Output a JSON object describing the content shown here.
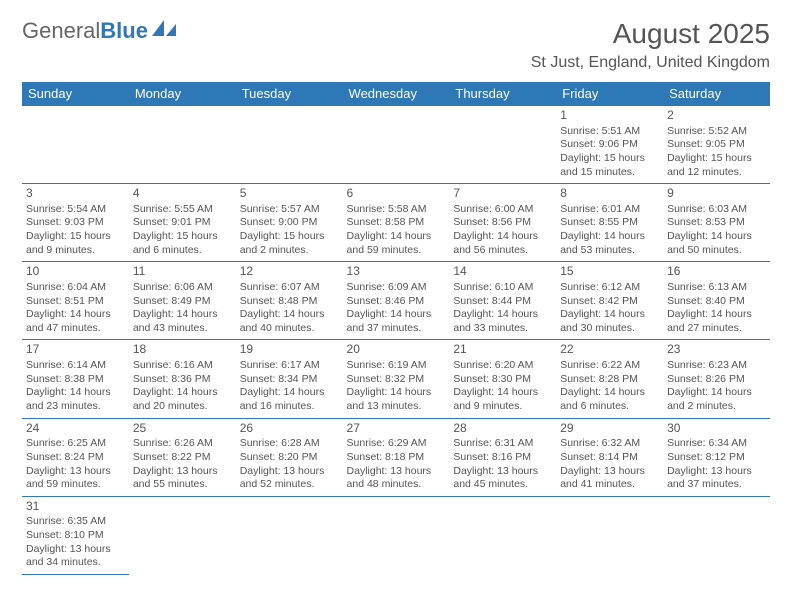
{
  "logo": {
    "text1": "General",
    "text2": "Blue"
  },
  "title": "August 2025",
  "location": "St Just, England, United Kingdom",
  "headers": [
    "Sunday",
    "Monday",
    "Tuesday",
    "Wednesday",
    "Thursday",
    "Friday",
    "Saturday"
  ],
  "header_bg": "#2f78b7",
  "header_fg": "#ffffff",
  "border_color": "#2f78b7",
  "text_color": "#555555",
  "days": [
    {
      "n": 1,
      "sunrise": "5:51 AM",
      "sunset": "9:06 PM",
      "daylight": "15 hours and 15 minutes."
    },
    {
      "n": 2,
      "sunrise": "5:52 AM",
      "sunset": "9:05 PM",
      "daylight": "15 hours and 12 minutes."
    },
    {
      "n": 3,
      "sunrise": "5:54 AM",
      "sunset": "9:03 PM",
      "daylight": "15 hours and 9 minutes."
    },
    {
      "n": 4,
      "sunrise": "5:55 AM",
      "sunset": "9:01 PM",
      "daylight": "15 hours and 6 minutes."
    },
    {
      "n": 5,
      "sunrise": "5:57 AM",
      "sunset": "9:00 PM",
      "daylight": "15 hours and 2 minutes."
    },
    {
      "n": 6,
      "sunrise": "5:58 AM",
      "sunset": "8:58 PM",
      "daylight": "14 hours and 59 minutes."
    },
    {
      "n": 7,
      "sunrise": "6:00 AM",
      "sunset": "8:56 PM",
      "daylight": "14 hours and 56 minutes."
    },
    {
      "n": 8,
      "sunrise": "6:01 AM",
      "sunset": "8:55 PM",
      "daylight": "14 hours and 53 minutes."
    },
    {
      "n": 9,
      "sunrise": "6:03 AM",
      "sunset": "8:53 PM",
      "daylight": "14 hours and 50 minutes."
    },
    {
      "n": 10,
      "sunrise": "6:04 AM",
      "sunset": "8:51 PM",
      "daylight": "14 hours and 47 minutes."
    },
    {
      "n": 11,
      "sunrise": "6:06 AM",
      "sunset": "8:49 PM",
      "daylight": "14 hours and 43 minutes."
    },
    {
      "n": 12,
      "sunrise": "6:07 AM",
      "sunset": "8:48 PM",
      "daylight": "14 hours and 40 minutes."
    },
    {
      "n": 13,
      "sunrise": "6:09 AM",
      "sunset": "8:46 PM",
      "daylight": "14 hours and 37 minutes."
    },
    {
      "n": 14,
      "sunrise": "6:10 AM",
      "sunset": "8:44 PM",
      "daylight": "14 hours and 33 minutes."
    },
    {
      "n": 15,
      "sunrise": "6:12 AM",
      "sunset": "8:42 PM",
      "daylight": "14 hours and 30 minutes."
    },
    {
      "n": 16,
      "sunrise": "6:13 AM",
      "sunset": "8:40 PM",
      "daylight": "14 hours and 27 minutes."
    },
    {
      "n": 17,
      "sunrise": "6:14 AM",
      "sunset": "8:38 PM",
      "daylight": "14 hours and 23 minutes."
    },
    {
      "n": 18,
      "sunrise": "6:16 AM",
      "sunset": "8:36 PM",
      "daylight": "14 hours and 20 minutes."
    },
    {
      "n": 19,
      "sunrise": "6:17 AM",
      "sunset": "8:34 PM",
      "daylight": "14 hours and 16 minutes."
    },
    {
      "n": 20,
      "sunrise": "6:19 AM",
      "sunset": "8:32 PM",
      "daylight": "14 hours and 13 minutes."
    },
    {
      "n": 21,
      "sunrise": "6:20 AM",
      "sunset": "8:30 PM",
      "daylight": "14 hours and 9 minutes."
    },
    {
      "n": 22,
      "sunrise": "6:22 AM",
      "sunset": "8:28 PM",
      "daylight": "14 hours and 6 minutes."
    },
    {
      "n": 23,
      "sunrise": "6:23 AM",
      "sunset": "8:26 PM",
      "daylight": "14 hours and 2 minutes."
    },
    {
      "n": 24,
      "sunrise": "6:25 AM",
      "sunset": "8:24 PM",
      "daylight": "13 hours and 59 minutes."
    },
    {
      "n": 25,
      "sunrise": "6:26 AM",
      "sunset": "8:22 PM",
      "daylight": "13 hours and 55 minutes."
    },
    {
      "n": 26,
      "sunrise": "6:28 AM",
      "sunset": "8:20 PM",
      "daylight": "13 hours and 52 minutes."
    },
    {
      "n": 27,
      "sunrise": "6:29 AM",
      "sunset": "8:18 PM",
      "daylight": "13 hours and 48 minutes."
    },
    {
      "n": 28,
      "sunrise": "6:31 AM",
      "sunset": "8:16 PM",
      "daylight": "13 hours and 45 minutes."
    },
    {
      "n": 29,
      "sunrise": "6:32 AM",
      "sunset": "8:14 PM",
      "daylight": "13 hours and 41 minutes."
    },
    {
      "n": 30,
      "sunrise": "6:34 AM",
      "sunset": "8:12 PM",
      "daylight": "13 hours and 37 minutes."
    },
    {
      "n": 31,
      "sunrise": "6:35 AM",
      "sunset": "8:10 PM",
      "daylight": "13 hours and 34 minutes."
    }
  ],
  "first_day_column": 5,
  "labels": {
    "sunrise": "Sunrise:",
    "sunset": "Sunset:",
    "daylight": "Daylight:"
  }
}
